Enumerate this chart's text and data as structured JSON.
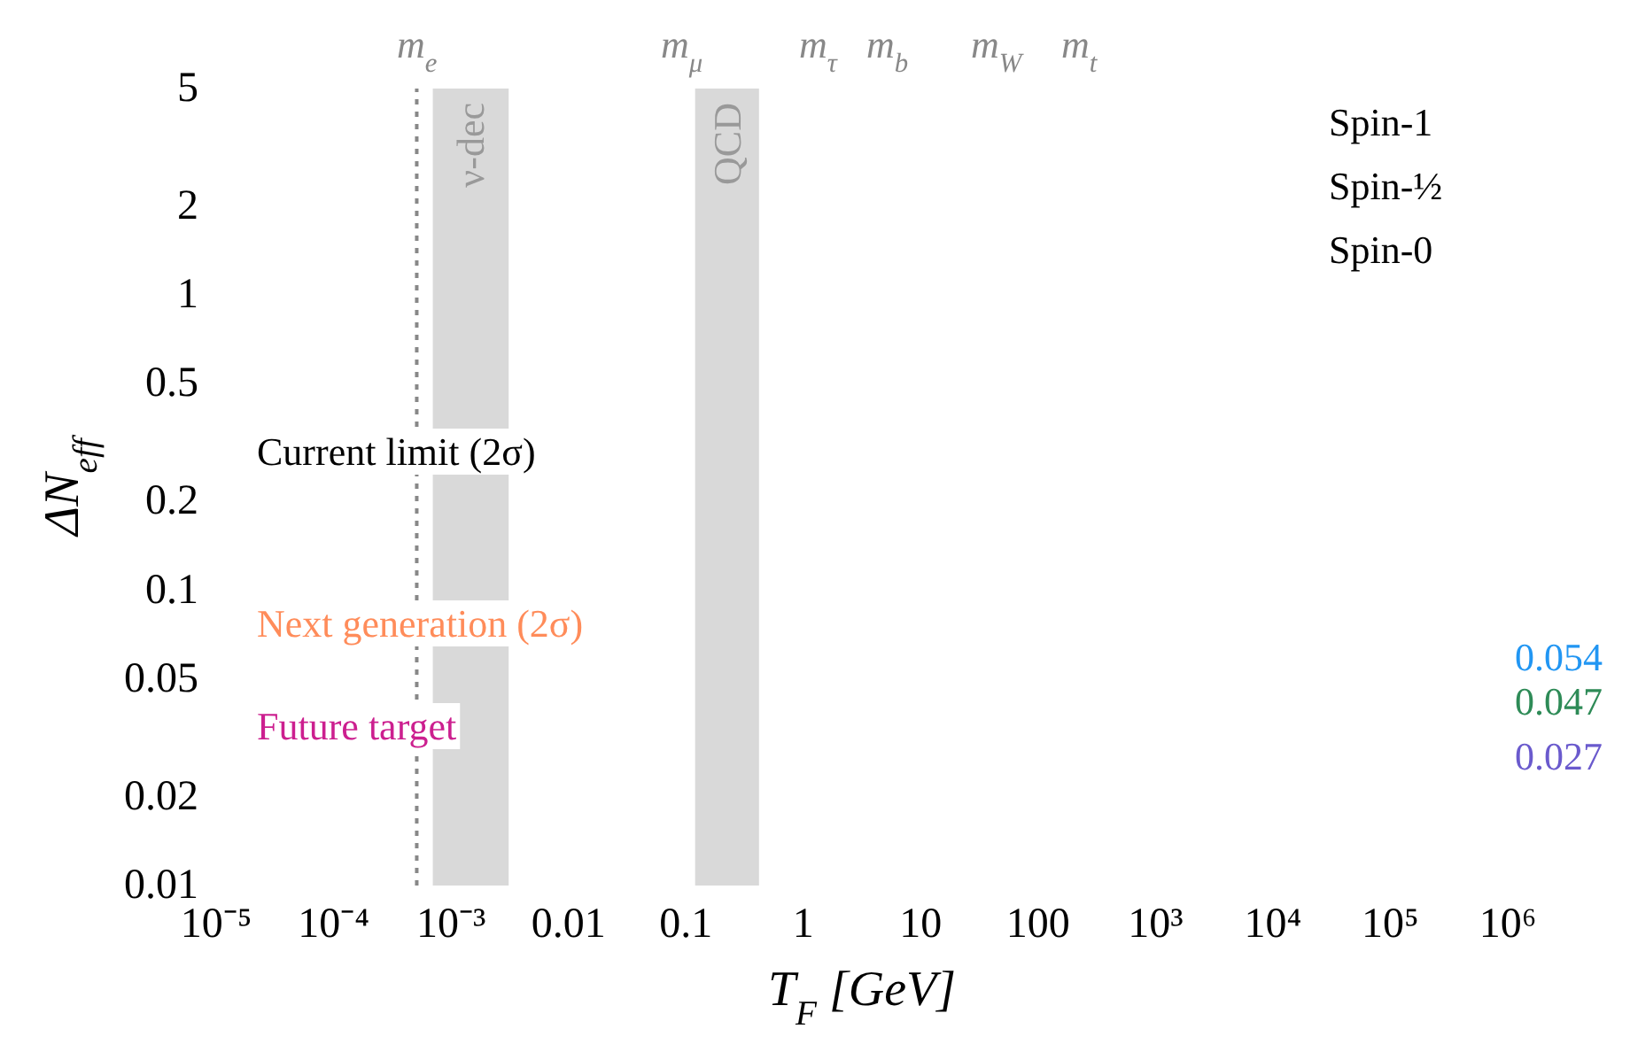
{
  "chart_data": {
    "type": "line",
    "xlabel": "T$_{F}$ [GeV]",
    "ylabel": "ΔN$_{eff}$",
    "log": "xy",
    "grid": false,
    "xlim": [
      1e-05,
      1000000
    ],
    "xticks": [
      {
        "value": 1e-05,
        "label": "10⁻⁵"
      },
      {
        "value": 0.0001,
        "label": "10⁻⁴"
      },
      {
        "value": 0.001,
        "label": "10⁻³"
      },
      0.01,
      0.1,
      1,
      10,
      100,
      {
        "value": 1000,
        "label": "10³"
      },
      {
        "value": 10000,
        "label": "10⁴"
      },
      {
        "value": 100000,
        "label": "10⁵"
      },
      {
        "value": 1000000,
        "label": "10⁶"
      }
    ],
    "ylim": [
      0.01,
      5
    ],
    "yticks": [
      0.01,
      0.02,
      0.05,
      0.1,
      0.2,
      0.5,
      1,
      2,
      5
    ],
    "ref_lines": [
      {
        "axis": "x",
        "value": 0.000511,
        "color": "#888888",
        "line_style": "dotted"
      }
    ],
    "bands": [
      {
        "axis": "x",
        "from": 0.0007,
        "to": 0.0031,
        "label": "ν-dec",
        "color": "#d9d9d9"
      },
      {
        "axis": "x",
        "from": 0.12,
        "to": 0.42,
        "label": "QCD",
        "color": "#d9d9d9"
      }
    ],
    "annotations": [
      "m$_{e}$",
      "m$_{μ}$",
      "m$_{τ}$",
      "m$_{b}$",
      "m$_{W}$",
      "m$_{t}$",
      "Spin-1",
      "Spin-½",
      "Spin-0",
      "Current limit (2σ)",
      "Next generation (2σ)",
      "Future target",
      "0.054",
      "0.047",
      "0.027"
    ]
  }
}
